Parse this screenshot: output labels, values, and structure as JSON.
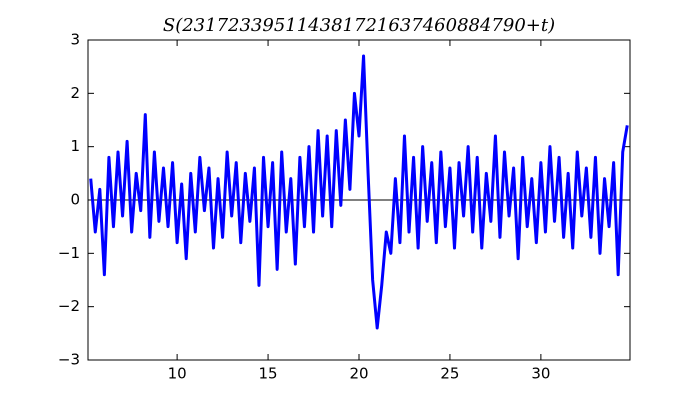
{
  "chart_data": {
    "type": "line",
    "title": "S(231723395114381721637460884790+t)",
    "x": [
      5.25,
      5.5,
      5.75,
      6,
      6.25,
      6.5,
      6.75,
      7,
      7.25,
      7.5,
      7.75,
      8,
      8.25,
      8.5,
      8.75,
      9,
      9.25,
      9.5,
      9.75,
      10,
      10.25,
      10.5,
      10.75,
      11,
      11.25,
      11.5,
      11.75,
      12,
      12.25,
      12.5,
      12.75,
      13,
      13.25,
      13.5,
      13.75,
      14,
      14.25,
      14.5,
      14.75,
      15,
      15.25,
      15.5,
      15.75,
      16,
      16.25,
      16.5,
      16.75,
      17,
      17.25,
      17.5,
      17.75,
      18,
      18.25,
      18.5,
      18.75,
      19,
      19.25,
      19.5,
      19.75,
      20,
      20.25,
      20.5,
      20.75,
      21,
      21.25,
      21.5,
      21.75,
      22,
      22.25,
      22.5,
      22.75,
      23,
      23.25,
      23.5,
      23.75,
      24,
      24.25,
      24.5,
      24.75,
      25,
      25.25,
      25.5,
      25.75,
      26,
      26.25,
      26.5,
      26.75,
      27,
      27.25,
      27.5,
      27.75,
      28,
      28.25,
      28.5,
      28.75,
      29,
      29.25,
      29.5,
      29.75,
      30,
      30.25,
      30.5,
      30.75,
      31,
      31.25,
      31.5,
      31.75,
      32,
      32.25,
      32.5,
      32.75,
      33,
      33.25,
      33.5,
      33.75,
      34,
      34.25,
      34.5,
      34.75
    ],
    "series": [
      {
        "color": "#0000ff",
        "values": [
          0.4,
          -0.6,
          0.2,
          -1.4,
          0.8,
          -0.5,
          0.9,
          -0.3,
          1.1,
          -0.6,
          0.5,
          -0.2,
          1.6,
          -0.7,
          0.9,
          -0.4,
          0.6,
          -0.5,
          0.7,
          -0.8,
          0.3,
          -1.1,
          0.5,
          -0.6,
          0.8,
          -0.2,
          0.6,
          -0.9,
          0.4,
          -0.7,
          0.9,
          -0.3,
          0.7,
          -0.8,
          0.5,
          -0.4,
          0.6,
          -1.6,
          0.8,
          -0.5,
          0.7,
          -1.3,
          0.9,
          -0.6,
          0.4,
          -1.2,
          0.8,
          -0.5,
          1.0,
          -0.6,
          1.3,
          -0.3,
          1.2,
          -0.5,
          1.3,
          -0.1,
          1.5,
          0.2,
          2.0,
          1.2,
          2.7,
          0.5,
          -1.5,
          -2.4,
          -1.6,
          -0.6,
          -1.0,
          0.4,
          -0.8,
          1.2,
          -0.6,
          0.8,
          -0.9,
          1.0,
          -0.4,
          0.7,
          -0.8,
          0.9,
          -0.5,
          0.6,
          -0.9,
          0.7,
          -0.3,
          1.0,
          -0.6,
          0.8,
          -0.9,
          0.5,
          -0.4,
          1.2,
          -0.7,
          0.9,
          -0.3,
          0.6,
          -1.1,
          0.8,
          -0.5,
          0.4,
          -0.8,
          0.7,
          -0.6,
          1.0,
          -0.4,
          0.8,
          -0.7,
          0.5,
          -0.9,
          0.9,
          -0.3,
          0.6,
          -0.7,
          0.8,
          -1.0,
          0.4,
          -0.5,
          0.7,
          -1.4,
          0.9,
          1.4
        ]
      }
    ],
    "hline": 0,
    "xlim": [
      5.1,
      34.9
    ],
    "ylim": [
      -3,
      3
    ],
    "xticks": [
      10,
      15,
      20,
      25,
      30
    ],
    "yticks": [
      {
        "value": -3,
        "label": "−3"
      },
      {
        "value": -2,
        "label": "−2"
      },
      {
        "value": -1,
        "label": "−1"
      },
      0,
      1,
      2,
      3
    ]
  }
}
